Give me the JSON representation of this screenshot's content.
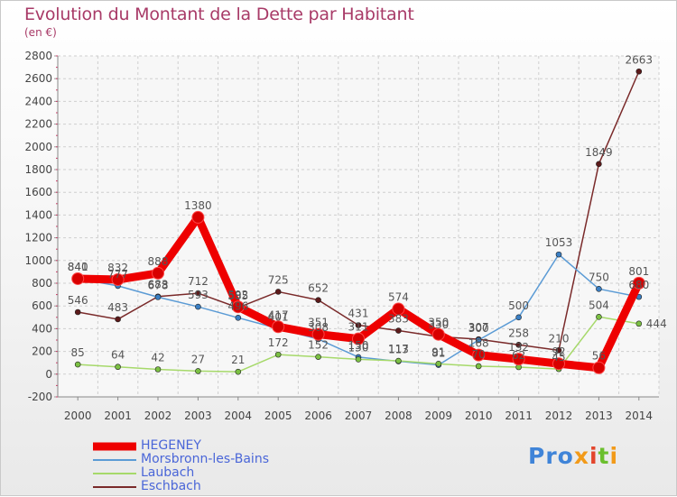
{
  "title": "Evolution du Montant de la Dette par Habitant",
  "subtitle": "(en €)",
  "logo": {
    "parts": [
      "Pro",
      "x",
      "i",
      "t",
      "i"
    ]
  },
  "chart_data": {
    "type": "line",
    "title": "Evolution du Montant de la Dette par Habitant",
    "ylabel": "(en €)",
    "x": [
      "2000",
      "2001",
      "2002",
      "2003",
      "2004",
      "2005",
      "2006",
      "2007",
      "2008",
      "2009",
      "2010",
      "2011",
      "2012",
      "2013",
      "2014"
    ],
    "ylim": [
      -200,
      2800
    ],
    "yticks": [
      -200,
      0,
      200,
      400,
      600,
      800,
      1000,
      1200,
      1400,
      1600,
      1800,
      2000,
      2200,
      2400,
      2600,
      2800
    ],
    "grid": true,
    "legend_position": "bottom-left",
    "series": [
      {
        "name": "HEGENEY",
        "color": "#ee0000",
        "marker_color": "#d80000",
        "values": [
          840,
          832,
          888,
          1380,
          592,
          417,
          351,
          311,
          574,
          350,
          168,
          132,
          92,
          56,
          801
        ]
      },
      {
        "name": "Morsbronn-les-Bains",
        "color": "#5b9bd5",
        "marker_color": "#3a7fc4",
        "values": [
          841,
          777,
          678,
          593,
          496,
          401,
          308,
          150,
          113,
          81,
          300,
          500,
          1053,
          750,
          680
        ]
      },
      {
        "name": "Laubach",
        "color": "#a6d96a",
        "marker_color": "#7bc043",
        "values": [
          85,
          64,
          42,
          27,
          21,
          172,
          152,
          130,
          117,
          91,
          70,
          62,
          45,
          504,
          444
        ]
      },
      {
        "name": "Eschbach",
        "color": "#7a2a2a",
        "marker_color": "#5c1a1a",
        "values": [
          546,
          483,
          683,
          712,
          585,
          725,
          652,
          431,
          383,
          330,
          307,
          258,
          210,
          1849,
          2663
        ]
      }
    ],
    "point_labels": [
      {
        "text": "840",
        "series": 0,
        "i": 0,
        "pos": "above"
      },
      {
        "text": "832",
        "series": 0,
        "i": 1,
        "pos": "above"
      },
      {
        "text": "888",
        "series": 0,
        "i": 2,
        "pos": "above"
      },
      {
        "text": "1380",
        "series": 0,
        "i": 3,
        "pos": "above"
      },
      {
        "text": "592",
        "series": 0,
        "i": 4,
        "pos": "above"
      },
      {
        "text": "417",
        "series": 0,
        "i": 5,
        "pos": "above"
      },
      {
        "text": "351",
        "series": 0,
        "i": 6,
        "pos": "above"
      },
      {
        "text": "311",
        "series": 0,
        "i": 7,
        "pos": "above"
      },
      {
        "text": "574",
        "series": 0,
        "i": 8,
        "pos": "above"
      },
      {
        "text": "350",
        "series": 0,
        "i": 9,
        "pos": "above"
      },
      {
        "text": "168",
        "series": 0,
        "i": 10,
        "pos": "above"
      },
      {
        "text": "132",
        "series": 0,
        "i": 11,
        "pos": "above"
      },
      {
        "text": "92",
        "series": 0,
        "i": 12,
        "pos": "above"
      },
      {
        "text": "56",
        "series": 0,
        "i": 13,
        "pos": "above"
      },
      {
        "text": "801",
        "series": 0,
        "i": 14,
        "pos": "above"
      },
      {
        "text": "841",
        "series": 1,
        "i": 0,
        "pos": "above"
      },
      {
        "text": "777",
        "series": 1,
        "i": 1,
        "pos": "above"
      },
      {
        "text": "678",
        "series": 1,
        "i": 2,
        "pos": "above"
      },
      {
        "text": "593",
        "series": 1,
        "i": 3,
        "pos": "above"
      },
      {
        "text": "496",
        "series": 1,
        "i": 4,
        "pos": "above"
      },
      {
        "text": "401",
        "series": 1,
        "i": 5,
        "pos": "above"
      },
      {
        "text": "308",
        "series": 1,
        "i": 6,
        "pos": "above"
      },
      {
        "text": "150",
        "series": 1,
        "i": 7,
        "pos": "above"
      },
      {
        "text": "113",
        "series": 1,
        "i": 8,
        "pos": "above"
      },
      {
        "text": "81",
        "series": 1,
        "i": 9,
        "pos": "above"
      },
      {
        "text": "300",
        "series": 1,
        "i": 10,
        "pos": "above"
      },
      {
        "text": "500",
        "series": 1,
        "i": 11,
        "pos": "above"
      },
      {
        "text": "1053",
        "series": 1,
        "i": 12,
        "pos": "above"
      },
      {
        "text": "750",
        "series": 1,
        "i": 13,
        "pos": "above"
      },
      {
        "text": "680",
        "series": 1,
        "i": 14,
        "pos": "above"
      },
      {
        "text": "85",
        "series": 2,
        "i": 0,
        "pos": "above"
      },
      {
        "text": "64",
        "series": 2,
        "i": 1,
        "pos": "above"
      },
      {
        "text": "42",
        "series": 2,
        "i": 2,
        "pos": "above"
      },
      {
        "text": "27",
        "series": 2,
        "i": 3,
        "pos": "above"
      },
      {
        "text": "21",
        "series": 2,
        "i": 4,
        "pos": "above"
      },
      {
        "text": "172",
        "series": 2,
        "i": 5,
        "pos": "above"
      },
      {
        "text": "152",
        "series": 2,
        "i": 6,
        "pos": "above"
      },
      {
        "text": "130",
        "series": 2,
        "i": 7,
        "pos": "above"
      },
      {
        "text": "117",
        "series": 2,
        "i": 8,
        "pos": "above"
      },
      {
        "text": "91",
        "series": 2,
        "i": 9,
        "pos": "above"
      },
      {
        "text": "70",
        "series": 2,
        "i": 10,
        "pos": "above"
      },
      {
        "text": "62",
        "series": 2,
        "i": 11,
        "pos": "above"
      },
      {
        "text": "45",
        "series": 2,
        "i": 12,
        "pos": "above"
      },
      {
        "text": "504",
        "series": 2,
        "i": 13,
        "pos": "above"
      },
      {
        "text": "444",
        "series": 2,
        "i": 14,
        "pos": "right"
      },
      {
        "text": "546",
        "series": 3,
        "i": 0,
        "pos": "above"
      },
      {
        "text": "483",
        "series": 3,
        "i": 1,
        "pos": "above"
      },
      {
        "text": "683",
        "series": 3,
        "i": 2,
        "pos": "above"
      },
      {
        "text": "712",
        "series": 3,
        "i": 3,
        "pos": "above"
      },
      {
        "text": "585",
        "series": 3,
        "i": 4,
        "pos": "above"
      },
      {
        "text": "725",
        "series": 3,
        "i": 5,
        "pos": "above"
      },
      {
        "text": "652",
        "series": 3,
        "i": 6,
        "pos": "above"
      },
      {
        "text": "431",
        "series": 3,
        "i": 7,
        "pos": "above"
      },
      {
        "text": "383",
        "series": 3,
        "i": 8,
        "pos": "above"
      },
      {
        "text": "330",
        "series": 3,
        "i": 9,
        "pos": "above"
      },
      {
        "text": "307",
        "series": 3,
        "i": 10,
        "pos": "above"
      },
      {
        "text": "258",
        "series": 3,
        "i": 11,
        "pos": "above"
      },
      {
        "text": "210",
        "series": 3,
        "i": 12,
        "pos": "above"
      },
      {
        "text": "1849",
        "series": 3,
        "i": 13,
        "pos": "above"
      },
      {
        "text": "2663",
        "series": 3,
        "i": 14,
        "pos": "above"
      }
    ]
  }
}
